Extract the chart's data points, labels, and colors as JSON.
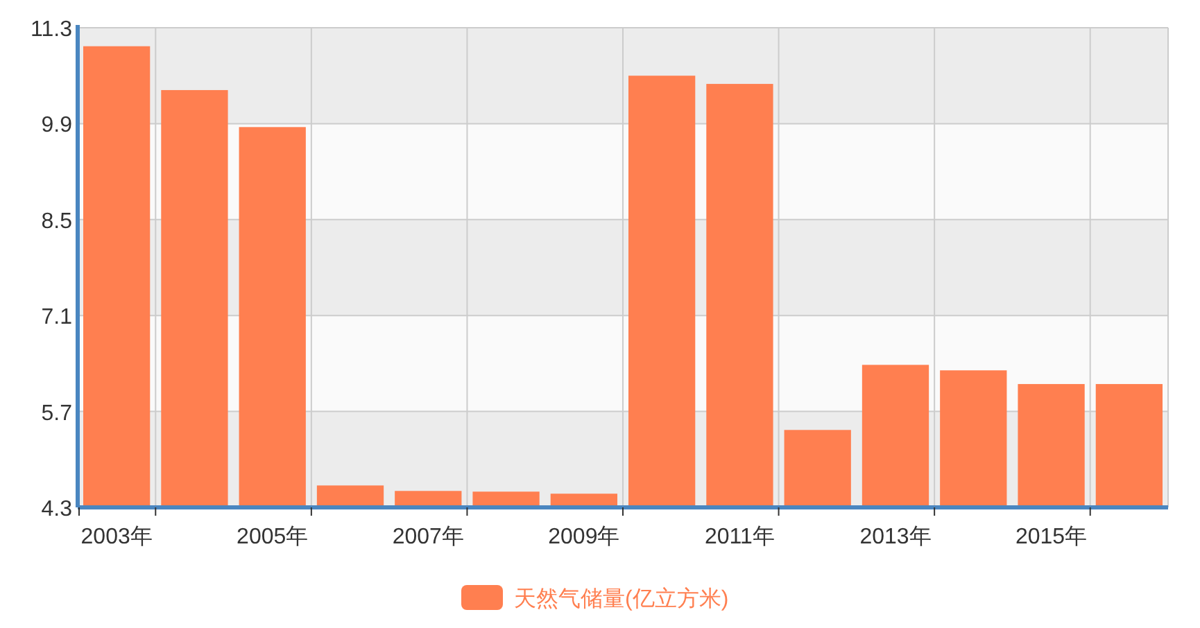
{
  "chart_data": {
    "type": "bar",
    "categories": [
      "2003年",
      null,
      "2005年",
      null,
      "2007年",
      null,
      "2009年",
      null,
      "2011年",
      null,
      "2013年",
      null,
      "2015年",
      null
    ],
    "series": [
      {
        "name": "天然气储量(亿立方米)",
        "color": "#ff7f50",
        "values": [
          11.03,
          10.39,
          9.85,
          4.62,
          4.54,
          4.53,
          4.5,
          10.6,
          10.48,
          5.43,
          6.38,
          6.3,
          6.1,
          6.1
        ]
      }
    ],
    "ylim": [
      4.3,
      11.3
    ],
    "yticks": [
      4.3,
      5.7,
      7.1,
      8.5,
      9.9,
      11.3
    ],
    "grid": true,
    "legend": "bottom"
  }
}
